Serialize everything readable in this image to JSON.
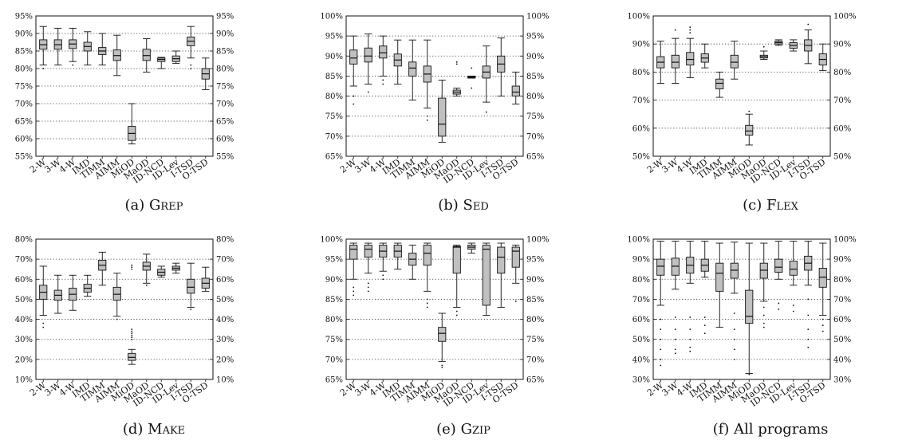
{
  "box_fill": "#c0c0c0",
  "chart_data": [
    {
      "id": "a",
      "type": "box",
      "caption_prefix": "(a)",
      "caption_name": "Grep",
      "categories": [
        "2-W",
        "3-W",
        "4-W",
        "IMD",
        "TIMM",
        "AIMM",
        "MiOD",
        "MaOD",
        "ID-NCD",
        "ID-Lev",
        "I-TSD",
        "O-TSD"
      ],
      "ylim": [
        55,
        95
      ],
      "ticks": [
        55,
        60,
        65,
        70,
        75,
        80,
        85,
        90,
        95
      ],
      "unit": "%",
      "boxes": [
        {
          "min": 81,
          "q1": 85.5,
          "med": 86.8,
          "q3": 88.2,
          "max": 92,
          "out": [
            80
          ]
        },
        {
          "min": 81,
          "q1": 85.5,
          "med": 86.8,
          "q3": 88.2,
          "max": 91.5,
          "out": []
        },
        {
          "min": 82,
          "q1": 85.7,
          "med": 87,
          "q3": 88.2,
          "max": 91.5,
          "out": [
            81
          ]
        },
        {
          "min": 81,
          "q1": 85,
          "med": 86.3,
          "q3": 87.5,
          "max": 90.5,
          "out": []
        },
        {
          "min": 81,
          "q1": 84,
          "med": 85,
          "q3": 86,
          "max": 90,
          "out": []
        },
        {
          "min": 78,
          "q1": 82.3,
          "med": 83.7,
          "q3": 85.3,
          "max": 89.5,
          "out": []
        },
        {
          "min": 58.5,
          "q1": 59.5,
          "med": 61.5,
          "q3": 63.5,
          "max": 70,
          "out": []
        },
        {
          "min": 79,
          "q1": 82.3,
          "med": 83.7,
          "q3": 85.5,
          "max": 88.5,
          "out": []
        },
        {
          "min": 80,
          "q1": 82,
          "med": 82.6,
          "q3": 83,
          "max": 83.2,
          "out": []
        },
        {
          "min": 81.5,
          "q1": 82,
          "med": 82.8,
          "q3": 83.6,
          "max": 85,
          "out": []
        },
        {
          "min": 83,
          "q1": 86.5,
          "med": 87.8,
          "q3": 89,
          "max": 92,
          "out": [
            81,
            80
          ]
        },
        {
          "min": 74,
          "q1": 77,
          "med": 78.5,
          "q3": 80,
          "max": 83,
          "out": []
        }
      ]
    },
    {
      "id": "b",
      "type": "box",
      "caption_prefix": "(b)",
      "caption_name": "Sed",
      "categories": [
        "2-W",
        "3-W",
        "4-W",
        "IMD",
        "TIMM",
        "AIMM",
        "MiOD",
        "MaOD",
        "ID-NCD",
        "ID-Lev",
        "I-TSD",
        "O-TSD"
      ],
      "ylim": [
        65,
        100
      ],
      "ticks": [
        65,
        70,
        75,
        80,
        85,
        90,
        95,
        100
      ],
      "unit": "%",
      "boxes": [
        {
          "min": 82.5,
          "q1": 88,
          "med": 89.5,
          "q3": 91.5,
          "max": 95,
          "out": [
            80,
            78
          ]
        },
        {
          "min": 83,
          "q1": 88.5,
          "med": 90,
          "q3": 92,
          "max": 95.5,
          "out": [
            81
          ]
        },
        {
          "min": 85,
          "q1": 89.5,
          "med": 90.8,
          "q3": 92.5,
          "max": 95,
          "out": [
            84,
            83
          ]
        },
        {
          "min": 83,
          "q1": 87.5,
          "med": 89,
          "q3": 90.5,
          "max": 94,
          "out": []
        },
        {
          "min": 79,
          "q1": 85,
          "med": 87,
          "q3": 88.5,
          "max": 94,
          "out": []
        },
        {
          "min": 77,
          "q1": 83.5,
          "med": 85.5,
          "q3": 87.5,
          "max": 94,
          "out": [
            75,
            74
          ]
        },
        {
          "min": 68.5,
          "q1": 70,
          "med": 73,
          "q3": 79.5,
          "max": 84,
          "out": []
        },
        {
          "min": 80,
          "q1": 80.5,
          "med": 81,
          "q3": 81.5,
          "max": 82,
          "out": [
            88.5,
            88
          ]
        },
        {
          "min": 84.5,
          "q1": 84.5,
          "med": 84.7,
          "q3": 84.9,
          "max": 85,
          "out": [
            87,
            82
          ]
        },
        {
          "min": 78.5,
          "q1": 84.5,
          "med": 86,
          "q3": 87.5,
          "max": 92.5,
          "out": [
            76
          ]
        },
        {
          "min": 80,
          "q1": 86,
          "med": 88,
          "q3": 90,
          "max": 94.5,
          "out": []
        },
        {
          "min": 78,
          "q1": 80,
          "med": 81,
          "q3": 82.5,
          "max": 86,
          "out": []
        }
      ]
    },
    {
      "id": "c",
      "type": "box",
      "caption_prefix": "(c)",
      "caption_name": "Flex",
      "categories": [
        "2-W",
        "3-W",
        "4-W",
        "IMD",
        "TIMM",
        "AIMM",
        "MiOD",
        "MaOD",
        "ID-NCD",
        "ID-Lev",
        "I-TSD",
        "O-TSD"
      ],
      "ylim": [
        50,
        100
      ],
      "ticks": [
        50,
        60,
        70,
        80,
        90,
        100
      ],
      "unit": "%",
      "boxes": [
        {
          "min": 76,
          "q1": 81.5,
          "med": 83.5,
          "q3": 85.5,
          "max": 91,
          "out": []
        },
        {
          "min": 76,
          "q1": 81.5,
          "med": 83.5,
          "q3": 86,
          "max": 92,
          "out": [
            95
          ]
        },
        {
          "min": 78,
          "q1": 82.5,
          "med": 84.5,
          "q3": 87,
          "max": 92,
          "out": [
            94,
            95,
            96
          ]
        },
        {
          "min": 81.5,
          "q1": 83.5,
          "med": 85,
          "q3": 86.5,
          "max": 90,
          "out": []
        },
        {
          "min": 71,
          "q1": 74,
          "med": 76,
          "q3": 77.5,
          "max": 80,
          "out": []
        },
        {
          "min": 77.5,
          "q1": 81.5,
          "med": 83.5,
          "q3": 86,
          "max": 91,
          "out": []
        },
        {
          "min": 54,
          "q1": 57.5,
          "med": 59,
          "q3": 61,
          "max": 65,
          "out": [
            66
          ]
        },
        {
          "min": 84.5,
          "q1": 85,
          "med": 85.5,
          "q3": 86,
          "max": 87.5,
          "out": [
            89
          ]
        },
        {
          "min": 89.5,
          "q1": 90,
          "med": 90.5,
          "q3": 91,
          "max": 91.5,
          "out": []
        },
        {
          "min": 87.5,
          "q1": 88.5,
          "med": 89.5,
          "q3": 90.5,
          "max": 91.5,
          "out": []
        },
        {
          "min": 83,
          "q1": 87.5,
          "med": 89.5,
          "q3": 91.5,
          "max": 95,
          "out": [
            97
          ]
        },
        {
          "min": 80.5,
          "q1": 82.5,
          "med": 84.5,
          "q3": 86.5,
          "max": 90,
          "out": []
        }
      ]
    },
    {
      "id": "d",
      "type": "box",
      "caption_prefix": "(d)",
      "caption_name": "Make",
      "categories": [
        "2-W",
        "3-W",
        "4-W",
        "IMD",
        "TIMM",
        "AIMM",
        "MiOD",
        "MaOD",
        "ID-NCD",
        "ID-Lev",
        "I-TSD",
        "O-TSD"
      ],
      "ylim": [
        10,
        80
      ],
      "ticks": [
        10,
        20,
        30,
        40,
        50,
        60,
        70,
        80
      ],
      "unit": "%",
      "boxes": [
        {
          "min": 42,
          "q1": 50,
          "med": 53.5,
          "q3": 57,
          "max": 66.5,
          "out": [
            38,
            36
          ]
        },
        {
          "min": 43,
          "q1": 49.5,
          "med": 52,
          "q3": 54.5,
          "max": 62,
          "out": []
        },
        {
          "min": 44.5,
          "q1": 49.5,
          "med": 52.5,
          "q3": 55.5,
          "max": 62,
          "out": []
        },
        {
          "min": 51.5,
          "q1": 53.5,
          "med": 55.5,
          "q3": 57.5,
          "max": 62,
          "out": []
        },
        {
          "min": 57,
          "q1": 64.5,
          "med": 67,
          "q3": 69.5,
          "max": 73.5,
          "out": []
        },
        {
          "min": 41.5,
          "q1": 49.5,
          "med": 52.5,
          "q3": 56,
          "max": 63,
          "out": [
            40
          ]
        },
        {
          "min": 17.5,
          "q1": 19.5,
          "med": 21,
          "q3": 23,
          "max": 25,
          "out": [
            30,
            31,
            32,
            33,
            34,
            35,
            65,
            66,
            67
          ]
        },
        {
          "min": 58,
          "q1": 64.5,
          "med": 66.5,
          "q3": 68.5,
          "max": 72.5,
          "out": [
            57
          ]
        },
        {
          "min": 61,
          "q1": 62,
          "med": 63.5,
          "q3": 65,
          "max": 66.5,
          "out": []
        },
        {
          "min": 63,
          "q1": 64.5,
          "med": 65.5,
          "q3": 66.5,
          "max": 68,
          "out": []
        },
        {
          "min": 46,
          "q1": 53,
          "med": 56,
          "q3": 60,
          "max": 68,
          "out": [
            45
          ]
        },
        {
          "min": 54,
          "q1": 55.5,
          "med": 58,
          "q3": 60.5,
          "max": 66,
          "out": []
        }
      ]
    },
    {
      "id": "e",
      "type": "box",
      "caption_prefix": "(e)",
      "caption_name": "Gzip",
      "categories": [
        "2-W",
        "3-W",
        "4-W",
        "IMD",
        "TIMM",
        "AIMM",
        "MiOD",
        "MaOD",
        "ID-NCD",
        "ID-Lev",
        "I-TSD",
        "O-TSD"
      ],
      "ylim": [
        65,
        100
      ],
      "ticks": [
        65,
        70,
        75,
        80,
        85,
        90,
        95,
        100
      ],
      "unit": "%",
      "boxes": [
        {
          "min": 90,
          "q1": 95,
          "med": 97.5,
          "q3": 98.5,
          "max": 99,
          "out": [
            88,
            87,
            86
          ]
        },
        {
          "min": 91.5,
          "q1": 95.5,
          "med": 97.5,
          "q3": 98.5,
          "max": 99,
          "out": [
            89,
            88,
            87
          ]
        },
        {
          "min": 92,
          "q1": 95.5,
          "med": 97,
          "q3": 98.5,
          "max": 99,
          "out": [
            90,
            91
          ]
        },
        {
          "min": 92.5,
          "q1": 95.5,
          "med": 97,
          "q3": 98.5,
          "max": 99,
          "out": []
        },
        {
          "min": 90,
          "q1": 93.5,
          "med": 95,
          "q3": 96.5,
          "max": 98.5,
          "out": []
        },
        {
          "min": 87,
          "q1": 93.5,
          "med": 96.5,
          "q3": 98.5,
          "max": 99,
          "out": [
            85,
            84,
            83
          ]
        },
        {
          "min": 69.5,
          "q1": 74.5,
          "med": 76.5,
          "q3": 78,
          "max": 81.5,
          "out": [
            68.5,
            68
          ]
        },
        {
          "min": 83,
          "q1": 91.5,
          "med": 98,
          "q3": 98.2,
          "max": 98.5,
          "out": [
            82,
            81
          ]
        },
        {
          "min": 96.5,
          "q1": 97.5,
          "med": 98,
          "q3": 98.5,
          "max": 99,
          "out": []
        },
        {
          "min": 81,
          "q1": 83.5,
          "med": 97.5,
          "q3": 98.5,
          "max": 99,
          "out": []
        },
        {
          "min": 83,
          "q1": 91.5,
          "med": 95.5,
          "q3": 98,
          "max": 99,
          "out": []
        },
        {
          "min": 89,
          "q1": 93,
          "med": 97,
          "q3": 98,
          "max": 98.5,
          "out": [
            84.5
          ]
        }
      ]
    },
    {
      "id": "f",
      "type": "box",
      "caption_prefix": "(f)",
      "caption_name": "All programs",
      "categories": [
        "2-W",
        "3-W",
        "4-W",
        "IMD",
        "TIMM",
        "AIMM",
        "MiOD",
        "MaOD",
        "ID-NCD",
        "ID-Lev",
        "I-TSD",
        "O-TSD"
      ],
      "ylim": [
        30,
        100
      ],
      "ticks": [
        30,
        40,
        50,
        60,
        70,
        80,
        90,
        100
      ],
      "unit": "%",
      "boxes": [
        {
          "min": 67,
          "q1": 82,
          "med": 86.5,
          "q3": 90,
          "max": 99,
          "out": [
            60,
            55,
            50,
            45,
            40,
            37
          ]
        },
        {
          "min": 75,
          "q1": 82,
          "med": 86.5,
          "q3": 90.5,
          "max": 99,
          "out": [
            61,
            55,
            50,
            45,
            43
          ]
        },
        {
          "min": 78,
          "q1": 83,
          "med": 87,
          "q3": 91,
          "max": 99,
          "out": [
            61,
            55,
            50,
            46,
            44
          ]
        },
        {
          "min": 81,
          "q1": 84,
          "med": 87,
          "q3": 90,
          "max": 99,
          "out": [
            61,
            57,
            53
          ]
        },
        {
          "min": 56,
          "q1": 74,
          "med": 83,
          "q3": 88,
          "max": 98,
          "out": []
        },
        {
          "min": 73,
          "q1": 80.5,
          "med": 84.5,
          "q3": 88,
          "max": 98.5,
          "out": [
            63,
            55,
            50,
            45,
            40
          ]
        },
        {
          "min": 33,
          "q1": 58,
          "med": 61.5,
          "q3": 74.5,
          "max": 98,
          "out": [
            32.5
          ]
        },
        {
          "min": 69,
          "q1": 80.5,
          "med": 84.5,
          "q3": 88,
          "max": 98,
          "out": [
            66,
            62,
            58,
            56
          ]
        },
        {
          "min": 80,
          "q1": 83.5,
          "med": 86,
          "q3": 90,
          "max": 99,
          "out": [
            68,
            65
          ]
        },
        {
          "min": 77,
          "q1": 82,
          "med": 85,
          "q3": 89,
          "max": 99,
          "out": [
            67,
            64
          ]
        },
        {
          "min": 77,
          "q1": 84.5,
          "med": 88,
          "q3": 91.5,
          "max": 99,
          "out": [
            70,
            62,
            55,
            50,
            46
          ]
        },
        {
          "min": 62,
          "q1": 76,
          "med": 81,
          "q3": 85.5,
          "max": 98,
          "out": [
            60,
            57,
            54
          ]
        }
      ]
    }
  ]
}
